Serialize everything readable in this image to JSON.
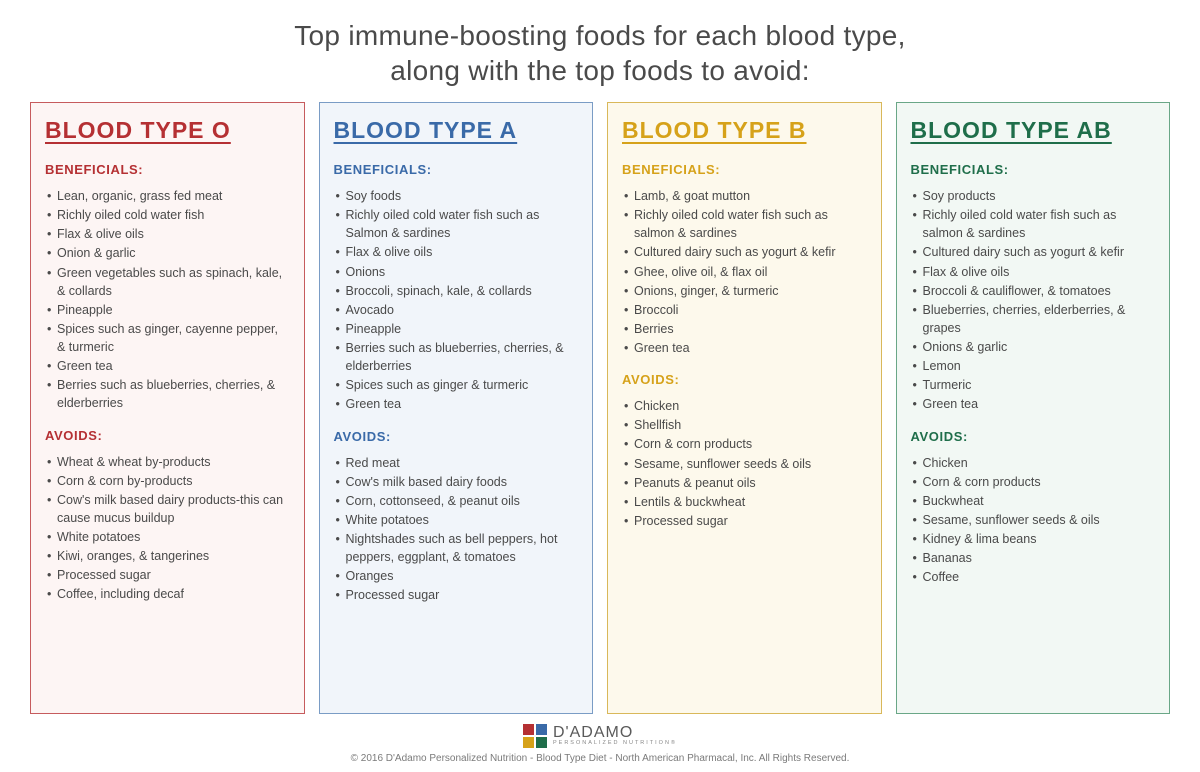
{
  "title_line1": "Top immune-boosting foods for each blood type,",
  "title_line2": "along with the top foods to avoid:",
  "beneficials_label": "BENEFICIALS:",
  "avoids_label": "AVOIDS:",
  "columns": [
    {
      "heading": "BLOOD TYPE O",
      "accent": "#b53033",
      "border": "#c65b5d",
      "bg": "#fdf5f4",
      "beneficials": [
        "Lean, organic, grass fed meat",
        "Richly oiled cold water fish",
        "Flax & olive oils",
        "Onion & garlic",
        "Green vegetables such as spinach, kale, & collards",
        "Pineapple",
        "Spices such as ginger, cayenne pepper, & turmeric",
        "Green tea",
        "Berries such as blueberries, cherries, & elderberries"
      ],
      "avoids": [
        "Wheat & wheat by-products",
        "Corn & corn by-products",
        "Cow's milk based dairy products-this can cause mucus buildup",
        "White potatoes",
        "Kiwi, oranges, & tangerines",
        "Processed sugar",
        "Coffee, including decaf"
      ]
    },
    {
      "heading": "BLOOD TYPE A",
      "accent": "#3a6aa8",
      "border": "#7a9cc5",
      "bg": "#f1f5fa",
      "beneficials": [
        "Soy foods",
        "Richly oiled cold water fish such as Salmon & sardines",
        "Flax & olive oils",
        "Onions",
        "Broccoli, spinach, kale, & collards",
        "Avocado",
        "Pineapple",
        "Berries such as blueberries, cherries, & elderberries",
        "Spices such as ginger & turmeric",
        "Green tea"
      ],
      "avoids": [
        "Red meat",
        "Cow's milk based dairy foods",
        "Corn, cottonseed, & peanut oils",
        "White potatoes",
        "Nightshades such as bell peppers, hot peppers, eggplant, & tomatoes",
        "Oranges",
        "Processed sugar"
      ]
    },
    {
      "heading": "BLOOD TYPE B",
      "accent": "#d6a21a",
      "border": "#d9b85a",
      "bg": "#fdf9ec",
      "beneficials": [
        "Lamb, & goat mutton",
        "Richly oiled cold water fish such as salmon & sardines",
        "Cultured dairy such as yogurt & kefir",
        "Ghee, olive oil, & flax oil",
        "Onions, ginger, & turmeric",
        "Broccoli",
        "Berries",
        "Green tea"
      ],
      "avoids": [
        "Chicken",
        "Shellfish",
        "Corn & corn products",
        "Sesame, sunflower seeds & oils",
        "Peanuts & peanut oils",
        "Lentils & buckwheat",
        "Processed sugar"
      ]
    },
    {
      "heading": "BLOOD TYPE AB",
      "accent": "#1f6e4a",
      "border": "#6aa787",
      "bg": "#f2f8f4",
      "beneficials": [
        "Soy products",
        "Richly oiled cold water fish such as salmon & sardines",
        "Cultured dairy such as yogurt & kefir",
        "Flax & olive oils",
        "Broccoli & cauliflower, & tomatoes",
        "Blueberries, cherries, elderberries, & grapes",
        "Onions & garlic",
        "Lemon",
        "Turmeric",
        "Green tea"
      ],
      "avoids": [
        "Chicken",
        "Corn & corn products",
        "Buckwheat",
        "Sesame, sunflower seeds & oils",
        "Kidney & lima beans",
        "Bananas",
        "Coffee"
      ]
    }
  ],
  "logo": {
    "main": "D'ADAMO",
    "sub": "PERSONALIZED NUTRITION®",
    "squares": [
      "#b53033",
      "#3a6aa8",
      "#d6a21a",
      "#1f6e4a"
    ]
  },
  "copyright": "© 2016 D'Adamo Personalized Nutrition - Blood Type Diet - North American Pharmacal, Inc. All Rights Reserved."
}
